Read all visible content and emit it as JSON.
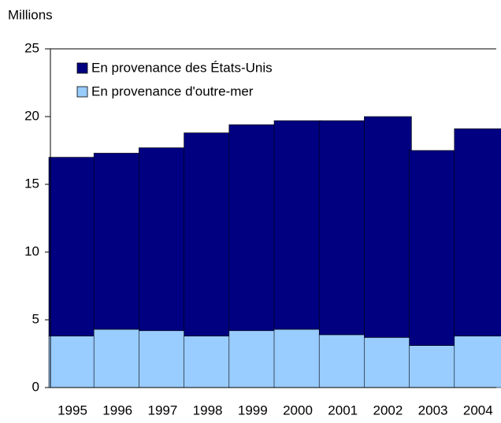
{
  "chart_data": {
    "type": "stacked_bar",
    "y_axis_label": "Millions",
    "categories": [
      "1995",
      "1996",
      "1997",
      "1998",
      "1999",
      "2000",
      "2001",
      "2002",
      "2003",
      "2004"
    ],
    "series": [
      {
        "name": "En provenance d'outre-mer",
        "color": "#99ccff",
        "values": [
          3.8,
          4.3,
          4.2,
          3.8,
          4.2,
          4.3,
          3.9,
          3.7,
          3.1,
          3.8
        ]
      },
      {
        "name": "En provenance des États-Unis",
        "color": "#000080",
        "values": [
          13.2,
          13.0,
          13.5,
          15.0,
          15.2,
          15.4,
          15.8,
          16.3,
          14.4,
          15.3
        ]
      }
    ],
    "ylim": [
      0,
      25
    ],
    "yticks": [
      0,
      5,
      10,
      15,
      20,
      25
    ]
  }
}
